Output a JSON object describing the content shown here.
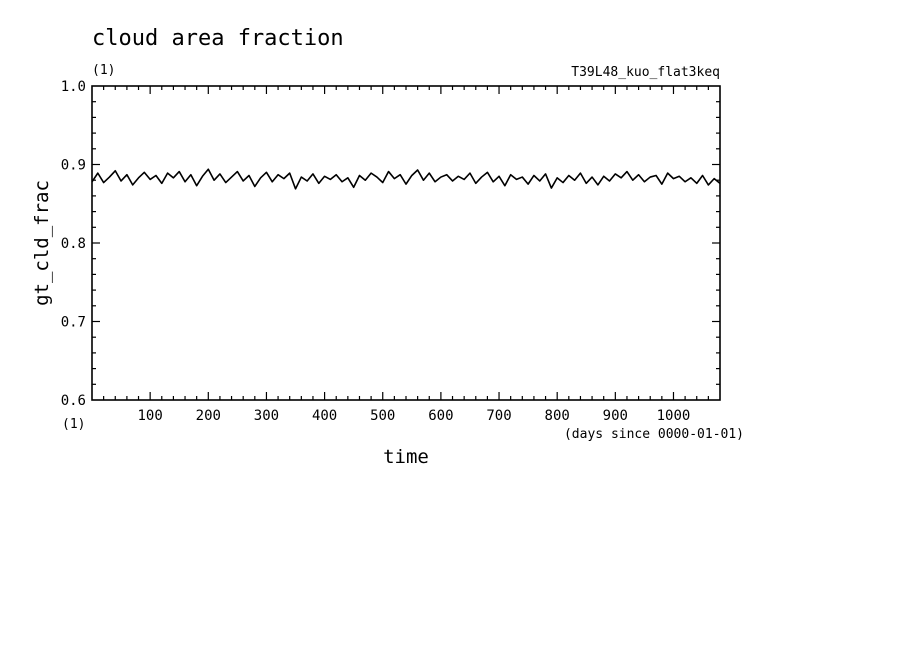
{
  "chart_data": {
    "type": "line",
    "title": "cloud area fraction",
    "units": "(1)",
    "experiment": "T39L48_kuo_flat3keq",
    "ylabel": "gt_cld_frac",
    "yunits": "(1)",
    "xlabel": "time",
    "xunits": "(days since 0000-01-01)",
    "xlim": [
      0,
      1080
    ],
    "ylim": [
      0.6,
      1.0
    ],
    "x_ticks": [
      "100",
      "200",
      "300",
      "400",
      "500",
      "600",
      "700",
      "800",
      "900",
      "1000"
    ],
    "y_ticks": [
      "0.6",
      "0.7",
      "0.8",
      "0.9",
      "1.0"
    ],
    "grid": false,
    "series": [
      {
        "x": [
          0,
          10,
          20,
          30,
          40,
          50,
          60,
          70,
          80,
          90,
          100,
          110,
          120,
          130,
          140,
          150,
          160,
          170,
          180,
          190,
          200,
          210,
          220,
          230,
          240,
          250,
          260,
          270,
          280,
          290,
          300,
          310,
          320,
          330,
          340,
          350,
          360,
          370,
          380,
          390,
          400,
          410,
          420,
          430,
          440,
          450,
          460,
          470,
          480,
          490,
          500,
          510,
          520,
          530,
          540,
          550,
          560,
          570,
          580,
          590,
          600,
          610,
          620,
          630,
          640,
          650,
          660,
          670,
          680,
          690,
          700,
          710,
          720,
          730,
          740,
          750,
          760,
          770,
          780,
          790,
          800,
          810,
          820,
          830,
          840,
          850,
          860,
          870,
          880,
          890,
          900,
          910,
          920,
          930,
          940,
          950,
          960,
          970,
          980,
          990,
          1000,
          1010,
          1020,
          1030,
          1040,
          1050,
          1060,
          1070,
          1080
        ],
        "y": [
          0.878,
          0.889,
          0.877,
          0.884,
          0.892,
          0.879,
          0.887,
          0.874,
          0.883,
          0.89,
          0.881,
          0.886,
          0.876,
          0.889,
          0.883,
          0.891,
          0.878,
          0.887,
          0.873,
          0.885,
          0.894,
          0.88,
          0.888,
          0.877,
          0.884,
          0.891,
          0.879,
          0.886,
          0.872,
          0.883,
          0.89,
          0.878,
          0.887,
          0.882,
          0.889,
          0.869,
          0.884,
          0.879,
          0.888,
          0.876,
          0.885,
          0.881,
          0.887,
          0.878,
          0.883,
          0.871,
          0.886,
          0.88,
          0.889,
          0.884,
          0.877,
          0.891,
          0.882,
          0.887,
          0.875,
          0.886,
          0.893,
          0.88,
          0.889,
          0.878,
          0.884,
          0.887,
          0.879,
          0.885,
          0.881,
          0.889,
          0.876,
          0.884,
          0.89,
          0.878,
          0.885,
          0.873,
          0.887,
          0.881,
          0.884,
          0.875,
          0.886,
          0.879,
          0.888,
          0.87,
          0.883,
          0.877,
          0.886,
          0.88,
          0.889,
          0.876,
          0.884,
          0.874,
          0.885,
          0.879,
          0.888,
          0.883,
          0.891,
          0.88,
          0.887,
          0.878,
          0.884,
          0.886,
          0.875,
          0.889,
          0.882,
          0.885,
          0.878,
          0.883,
          0.876,
          0.886,
          0.874,
          0.882,
          0.876
        ]
      }
    ]
  }
}
